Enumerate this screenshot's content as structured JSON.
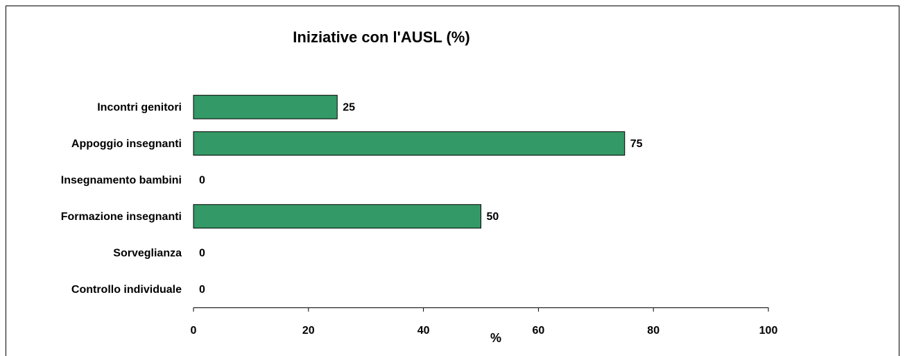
{
  "chart_data": {
    "type": "bar",
    "orientation": "horizontal",
    "title": "Iniziative con l'AUSL (%)",
    "x_label": "%",
    "categories": [
      "Incontri genitori",
      "Appoggio insegnanti",
      "Insegnamento bambini",
      "Formazione insegnanti",
      "Sorveglianza",
      "Controllo individuale"
    ],
    "values": [
      25,
      75,
      0,
      50,
      0,
      0
    ],
    "color": "#339966",
    "xlim": [
      0,
      100
    ],
    "xticks": [
      0,
      20,
      40,
      60,
      80,
      100
    ],
    "grid": false
  }
}
